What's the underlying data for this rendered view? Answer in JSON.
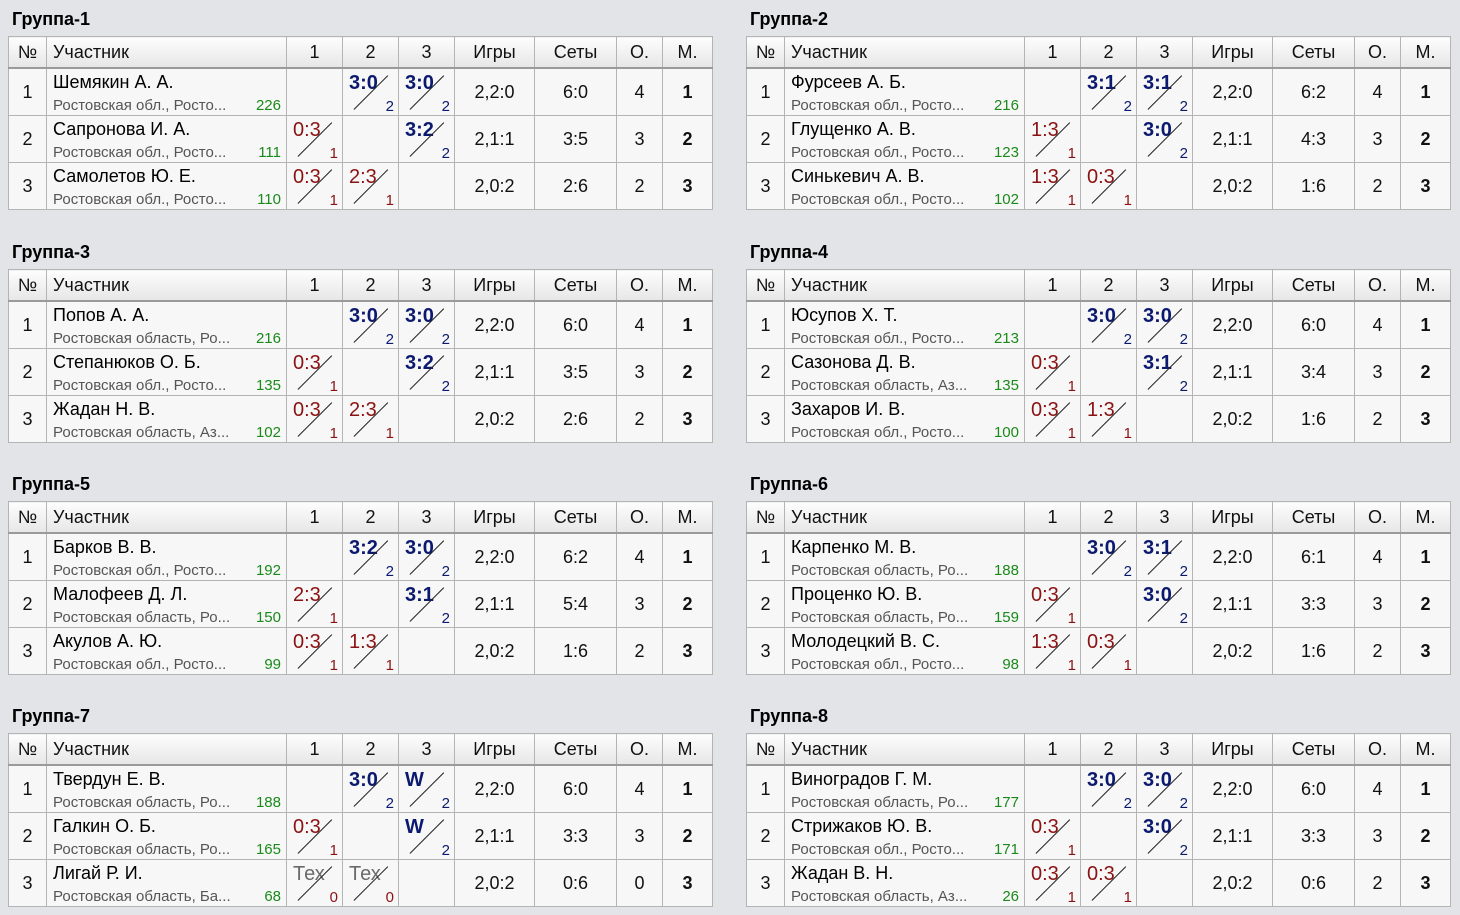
{
  "headers": {
    "num": "№",
    "name": "Участник",
    "c1": "1",
    "c2": "2",
    "c3": "3",
    "games": "Игры",
    "sets": "Сеты",
    "points": "О.",
    "place": "М."
  },
  "groups": [
    {
      "title": "Группа-1",
      "rows": [
        {
          "n": "1",
          "name": "Шемякин А. А.",
          "region": "Ростовская обл., Росто...",
          "rating": "226",
          "results": [
            null,
            {
              "s": "3:0",
              "sub": "2",
              "t": "win"
            },
            {
              "s": "3:0",
              "sub": "2",
              "t": "win"
            }
          ],
          "games": "2,2:0",
          "sets": "6:0",
          "points": "4",
          "place": "1"
        },
        {
          "n": "2",
          "name": "Сапронова И. А.",
          "region": "Ростовская обл., Росто...",
          "rating": "111",
          "results": [
            {
              "s": "0:3",
              "sub": "1",
              "t": "loss"
            },
            null,
            {
              "s": "3:2",
              "sub": "2",
              "t": "win"
            }
          ],
          "games": "2,1:1",
          "sets": "3:5",
          "points": "3",
          "place": "2"
        },
        {
          "n": "3",
          "name": "Самолетов Ю. Е.",
          "region": "Ростовская обл., Росто...",
          "rating": "110",
          "results": [
            {
              "s": "0:3",
              "sub": "1",
              "t": "loss"
            },
            {
              "s": "2:3",
              "sub": "1",
              "t": "loss"
            },
            null
          ],
          "games": "2,0:2",
          "sets": "2:6",
          "points": "2",
          "place": "3"
        }
      ]
    },
    {
      "title": "Группа-2",
      "rows": [
        {
          "n": "1",
          "name": "Фурсеев А. Б.",
          "region": "Ростовская обл., Росто...",
          "rating": "216",
          "results": [
            null,
            {
              "s": "3:1",
              "sub": "2",
              "t": "win"
            },
            {
              "s": "3:1",
              "sub": "2",
              "t": "win"
            }
          ],
          "games": "2,2:0",
          "sets": "6:2",
          "points": "4",
          "place": "1"
        },
        {
          "n": "2",
          "name": "Глущенко А. В.",
          "region": "Ростовская обл., Росто...",
          "rating": "123",
          "results": [
            {
              "s": "1:3",
              "sub": "1",
              "t": "loss"
            },
            null,
            {
              "s": "3:0",
              "sub": "2",
              "t": "win"
            }
          ],
          "games": "2,1:1",
          "sets": "4:3",
          "points": "3",
          "place": "2"
        },
        {
          "n": "3",
          "name": "Синькевич А. В.",
          "region": "Ростовская обл., Росто...",
          "rating": "102",
          "results": [
            {
              "s": "1:3",
              "sub": "1",
              "t": "loss"
            },
            {
              "s": "0:3",
              "sub": "1",
              "t": "loss"
            },
            null
          ],
          "games": "2,0:2",
          "sets": "1:6",
          "points": "2",
          "place": "3"
        }
      ]
    },
    {
      "title": "Группа-3",
      "rows": [
        {
          "n": "1",
          "name": "Попов А. А.",
          "region": "Ростовская область, Ро...",
          "rating": "216",
          "results": [
            null,
            {
              "s": "3:0",
              "sub": "2",
              "t": "win"
            },
            {
              "s": "3:0",
              "sub": "2",
              "t": "win"
            }
          ],
          "games": "2,2:0",
          "sets": "6:0",
          "points": "4",
          "place": "1"
        },
        {
          "n": "2",
          "name": "Степанюков О. Б.",
          "region": "Ростовская обл., Росто...",
          "rating": "135",
          "results": [
            {
              "s": "0:3",
              "sub": "1",
              "t": "loss"
            },
            null,
            {
              "s": "3:2",
              "sub": "2",
              "t": "win"
            }
          ],
          "games": "2,1:1",
          "sets": "3:5",
          "points": "3",
          "place": "2"
        },
        {
          "n": "3",
          "name": "Жадан Н. В.",
          "region": "Ростовская область, Аз...",
          "rating": "102",
          "results": [
            {
              "s": "0:3",
              "sub": "1",
              "t": "loss"
            },
            {
              "s": "2:3",
              "sub": "1",
              "t": "loss"
            },
            null
          ],
          "games": "2,0:2",
          "sets": "2:6",
          "points": "2",
          "place": "3"
        }
      ]
    },
    {
      "title": "Группа-4",
      "rows": [
        {
          "n": "1",
          "name": "Юсупов Х. Т.",
          "region": "Ростовская обл., Росто...",
          "rating": "213",
          "results": [
            null,
            {
              "s": "3:0",
              "sub": "2",
              "t": "win"
            },
            {
              "s": "3:0",
              "sub": "2",
              "t": "win"
            }
          ],
          "games": "2,2:0",
          "sets": "6:0",
          "points": "4",
          "place": "1"
        },
        {
          "n": "2",
          "name": "Сазонова Д. В.",
          "region": "Ростовская область, Аз...",
          "rating": "135",
          "results": [
            {
              "s": "0:3",
              "sub": "1",
              "t": "loss"
            },
            null,
            {
              "s": "3:1",
              "sub": "2",
              "t": "win"
            }
          ],
          "games": "2,1:1",
          "sets": "3:4",
          "points": "3",
          "place": "2"
        },
        {
          "n": "3",
          "name": "Захаров И. В.",
          "region": "Ростовская обл., Росто...",
          "rating": "100",
          "results": [
            {
              "s": "0:3",
              "sub": "1",
              "t": "loss"
            },
            {
              "s": "1:3",
              "sub": "1",
              "t": "loss"
            },
            null
          ],
          "games": "2,0:2",
          "sets": "1:6",
          "points": "2",
          "place": "3"
        }
      ]
    },
    {
      "title": "Группа-5",
      "rows": [
        {
          "n": "1",
          "name": "Барков В. В.",
          "region": "Ростовская обл., Росто...",
          "rating": "192",
          "results": [
            null,
            {
              "s": "3:2",
              "sub": "2",
              "t": "win"
            },
            {
              "s": "3:0",
              "sub": "2",
              "t": "win"
            }
          ],
          "games": "2,2:0",
          "sets": "6:2",
          "points": "4",
          "place": "1"
        },
        {
          "n": "2",
          "name": "Малофеев Д. Л.",
          "region": "Ростовская область, Ро...",
          "rating": "150",
          "results": [
            {
              "s": "2:3",
              "sub": "1",
              "t": "loss"
            },
            null,
            {
              "s": "3:1",
              "sub": "2",
              "t": "win"
            }
          ],
          "games": "2,1:1",
          "sets": "5:4",
          "points": "3",
          "place": "2"
        },
        {
          "n": "3",
          "name": "Акулов А. Ю.",
          "region": "Ростовская обл., Росто...",
          "rating": "99",
          "results": [
            {
              "s": "0:3",
              "sub": "1",
              "t": "loss"
            },
            {
              "s": "1:3",
              "sub": "1",
              "t": "loss"
            },
            null
          ],
          "games": "2,0:2",
          "sets": "1:6",
          "points": "2",
          "place": "3"
        }
      ]
    },
    {
      "title": "Группа-6",
      "rows": [
        {
          "n": "1",
          "name": "Карпенко М. В.",
          "region": "Ростовская область, Ро...",
          "rating": "188",
          "results": [
            null,
            {
              "s": "3:0",
              "sub": "2",
              "t": "win"
            },
            {
              "s": "3:1",
              "sub": "2",
              "t": "win"
            }
          ],
          "games": "2,2:0",
          "sets": "6:1",
          "points": "4",
          "place": "1"
        },
        {
          "n": "2",
          "name": "Проценко Ю. В.",
          "region": "Ростовская область, Ро...",
          "rating": "159",
          "results": [
            {
              "s": "0:3",
              "sub": "1",
              "t": "loss"
            },
            null,
            {
              "s": "3:0",
              "sub": "2",
              "t": "win"
            }
          ],
          "games": "2,1:1",
          "sets": "3:3",
          "points": "3",
          "place": "2"
        },
        {
          "n": "3",
          "name": "Молодецкий В. С.",
          "region": "Ростовская обл., Росто...",
          "rating": "98",
          "results": [
            {
              "s": "1:3",
              "sub": "1",
              "t": "loss"
            },
            {
              "s": "0:3",
              "sub": "1",
              "t": "loss"
            },
            null
          ],
          "games": "2,0:2",
          "sets": "1:6",
          "points": "2",
          "place": "3"
        }
      ]
    },
    {
      "title": "Группа-7",
      "rows": [
        {
          "n": "1",
          "name": "Твердун Е. В.",
          "region": "Ростовская область, Ро...",
          "rating": "188",
          "results": [
            null,
            {
              "s": "3:0",
              "sub": "2",
              "t": "win"
            },
            {
              "s": "W",
              "sub": "2",
              "t": "win"
            }
          ],
          "games": "2,2:0",
          "sets": "6:0",
          "points": "4",
          "place": "1"
        },
        {
          "n": "2",
          "name": "Галкин О. Б.",
          "region": "Ростовская область, Ро...",
          "rating": "165",
          "results": [
            {
              "s": "0:3",
              "sub": "1",
              "t": "loss"
            },
            null,
            {
              "s": "W",
              "sub": "2",
              "t": "win"
            }
          ],
          "games": "2,1:1",
          "sets": "3:3",
          "points": "3",
          "place": "2"
        },
        {
          "n": "3",
          "name": "Лигай Р. И.",
          "region": "Ростовская область, Ба...",
          "rating": "68",
          "results": [
            {
              "s": "Тех",
              "sub": "0",
              "t": "tech"
            },
            {
              "s": "Тех",
              "sub": "0",
              "t": "tech"
            },
            null
          ],
          "games": "2,0:2",
          "sets": "0:6",
          "points": "0",
          "place": "3"
        }
      ]
    },
    {
      "title": "Группа-8",
      "rows": [
        {
          "n": "1",
          "name": "Виноградов Г. М.",
          "region": "Ростовская область, Ро...",
          "rating": "177",
          "results": [
            null,
            {
              "s": "3:0",
              "sub": "2",
              "t": "win"
            },
            {
              "s": "3:0",
              "sub": "2",
              "t": "win"
            }
          ],
          "games": "2,2:0",
          "sets": "6:0",
          "points": "4",
          "place": "1"
        },
        {
          "n": "2",
          "name": "Стрижаков Ю. В.",
          "region": "Ростовская обл., Росто...",
          "rating": "171",
          "results": [
            {
              "s": "0:3",
              "sub": "1",
              "t": "loss"
            },
            null,
            {
              "s": "3:0",
              "sub": "2",
              "t": "win"
            }
          ],
          "games": "2,1:1",
          "sets": "3:3",
          "points": "3",
          "place": "2"
        },
        {
          "n": "3",
          "name": "Жадан В. Н.",
          "region": "Ростовская область, Аз...",
          "rating": "26",
          "results": [
            {
              "s": "0:3",
              "sub": "1",
              "t": "loss"
            },
            {
              "s": "0:3",
              "sub": "1",
              "t": "loss"
            },
            null
          ],
          "games": "2,0:2",
          "sets": "0:6",
          "points": "2",
          "place": "3"
        }
      ]
    }
  ]
}
